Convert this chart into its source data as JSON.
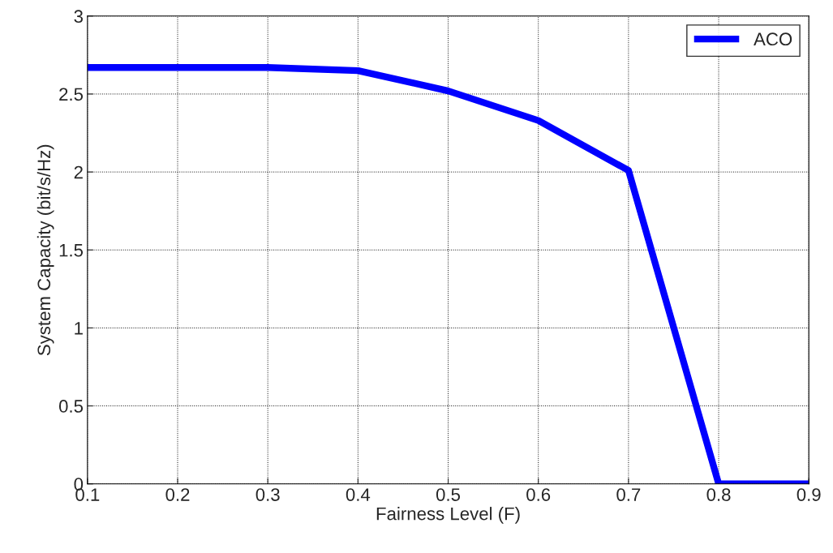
{
  "chart_data": {
    "type": "line",
    "xlabel": "Fairness Level (F)",
    "ylabel": "System Capacity (bit/s/Hz)",
    "x": [
      0.1,
      0.2,
      0.3,
      0.4,
      0.5,
      0.6,
      0.7,
      0.8,
      0.9
    ],
    "series": [
      {
        "name": "ACO",
        "color": "#0000ff",
        "values": [
          2.67,
          2.67,
          2.67,
          2.65,
          2.52,
          2.33,
          2.01,
          0,
          0
        ]
      }
    ],
    "xlim": [
      0.1,
      0.9
    ],
    "xticks": [
      0.1,
      0.2,
      0.3,
      0.4,
      0.5,
      0.6,
      0.7,
      0.8,
      0.9
    ],
    "ylim": [
      0,
      3
    ],
    "yticks": [
      0,
      0.5,
      1,
      1.5,
      2,
      2.5,
      3
    ],
    "grid": true,
    "legend": "top right",
    "marker": "none",
    "line_style": "solid"
  }
}
